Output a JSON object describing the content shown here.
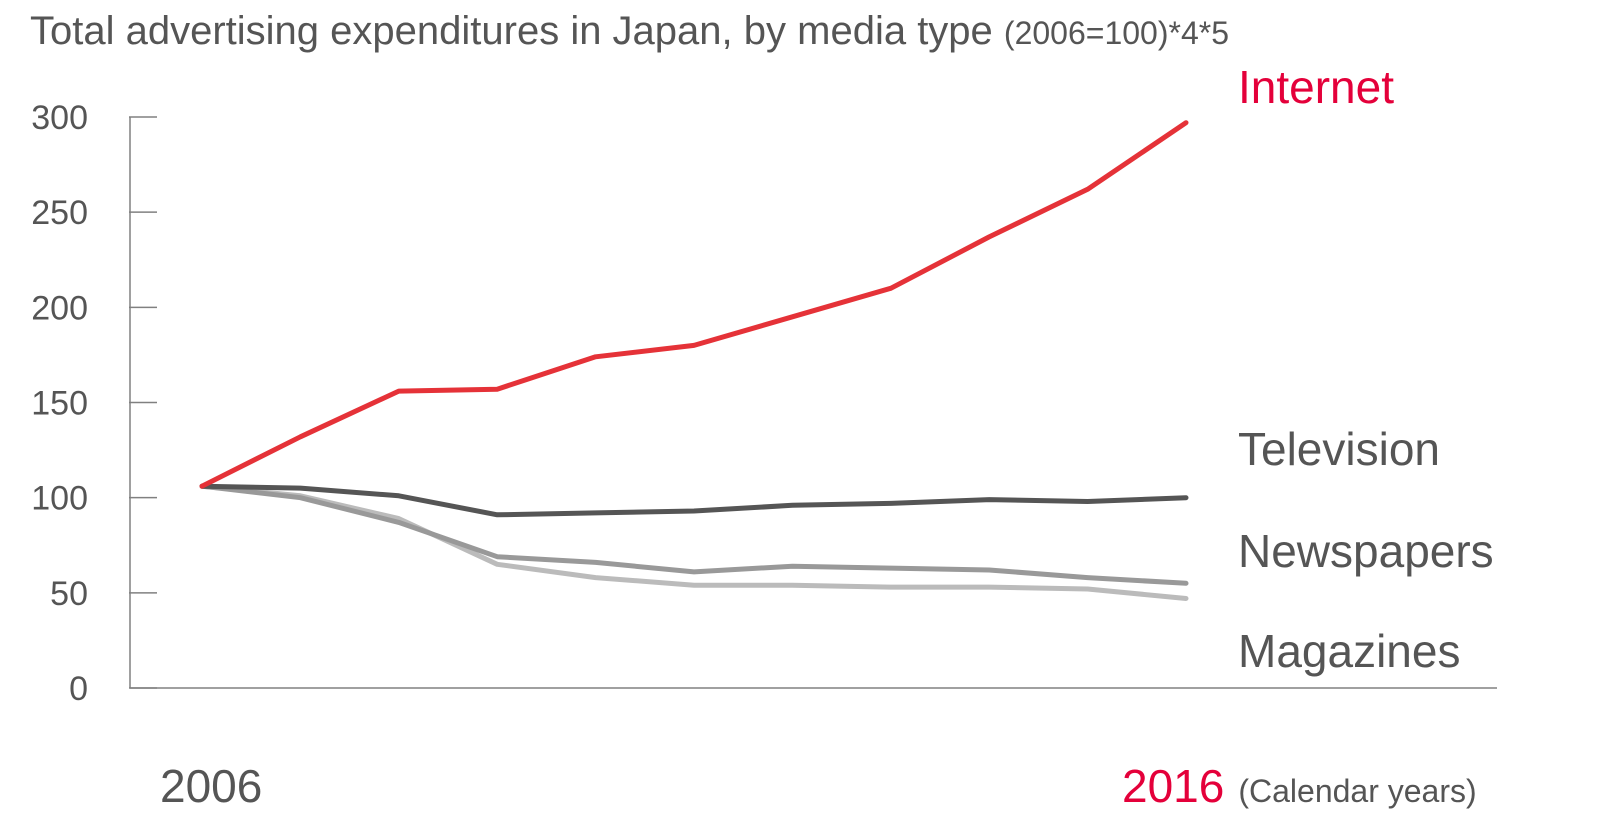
{
  "title": {
    "main": "Total advertising expenditures in Japan, by media type ",
    "suffix": "(2006=100)*4*5"
  },
  "x_axis": {
    "start_label": "2006",
    "end_label": "2016",
    "unit": "(Calendar years)"
  },
  "colors": {
    "Internet": "#e53238",
    "Television": "#555555",
    "Newspapers": "#999999",
    "Magazines": "#bbbbbb",
    "label_internet": "#e4003a",
    "label_other": "#555555"
  },
  "chart_data": {
    "type": "line",
    "x": [
      2006,
      2007,
      2008,
      2009,
      2010,
      2011,
      2012,
      2013,
      2014,
      2015,
      2016
    ],
    "ylim": [
      0,
      300
    ],
    "yticks": [
      "0",
      "50",
      "100",
      "150",
      "200",
      "250",
      "300"
    ],
    "grid": false,
    "series": [
      {
        "name": "Internet",
        "values": [
          106,
          132,
          156,
          157,
          174,
          180,
          195,
          210,
          237,
          262,
          297
        ]
      },
      {
        "name": "Television",
        "values": [
          106,
          105,
          101,
          91,
          92,
          93,
          96,
          97,
          99,
          98,
          100
        ]
      },
      {
        "name": "Newspapers",
        "values": [
          106,
          100,
          87,
          69,
          66,
          61,
          64,
          63,
          62,
          58,
          55
        ]
      },
      {
        "name": "Magazines",
        "values": [
          106,
          101,
          89,
          65,
          58,
          54,
          54,
          53,
          53,
          52,
          47
        ]
      }
    ]
  }
}
